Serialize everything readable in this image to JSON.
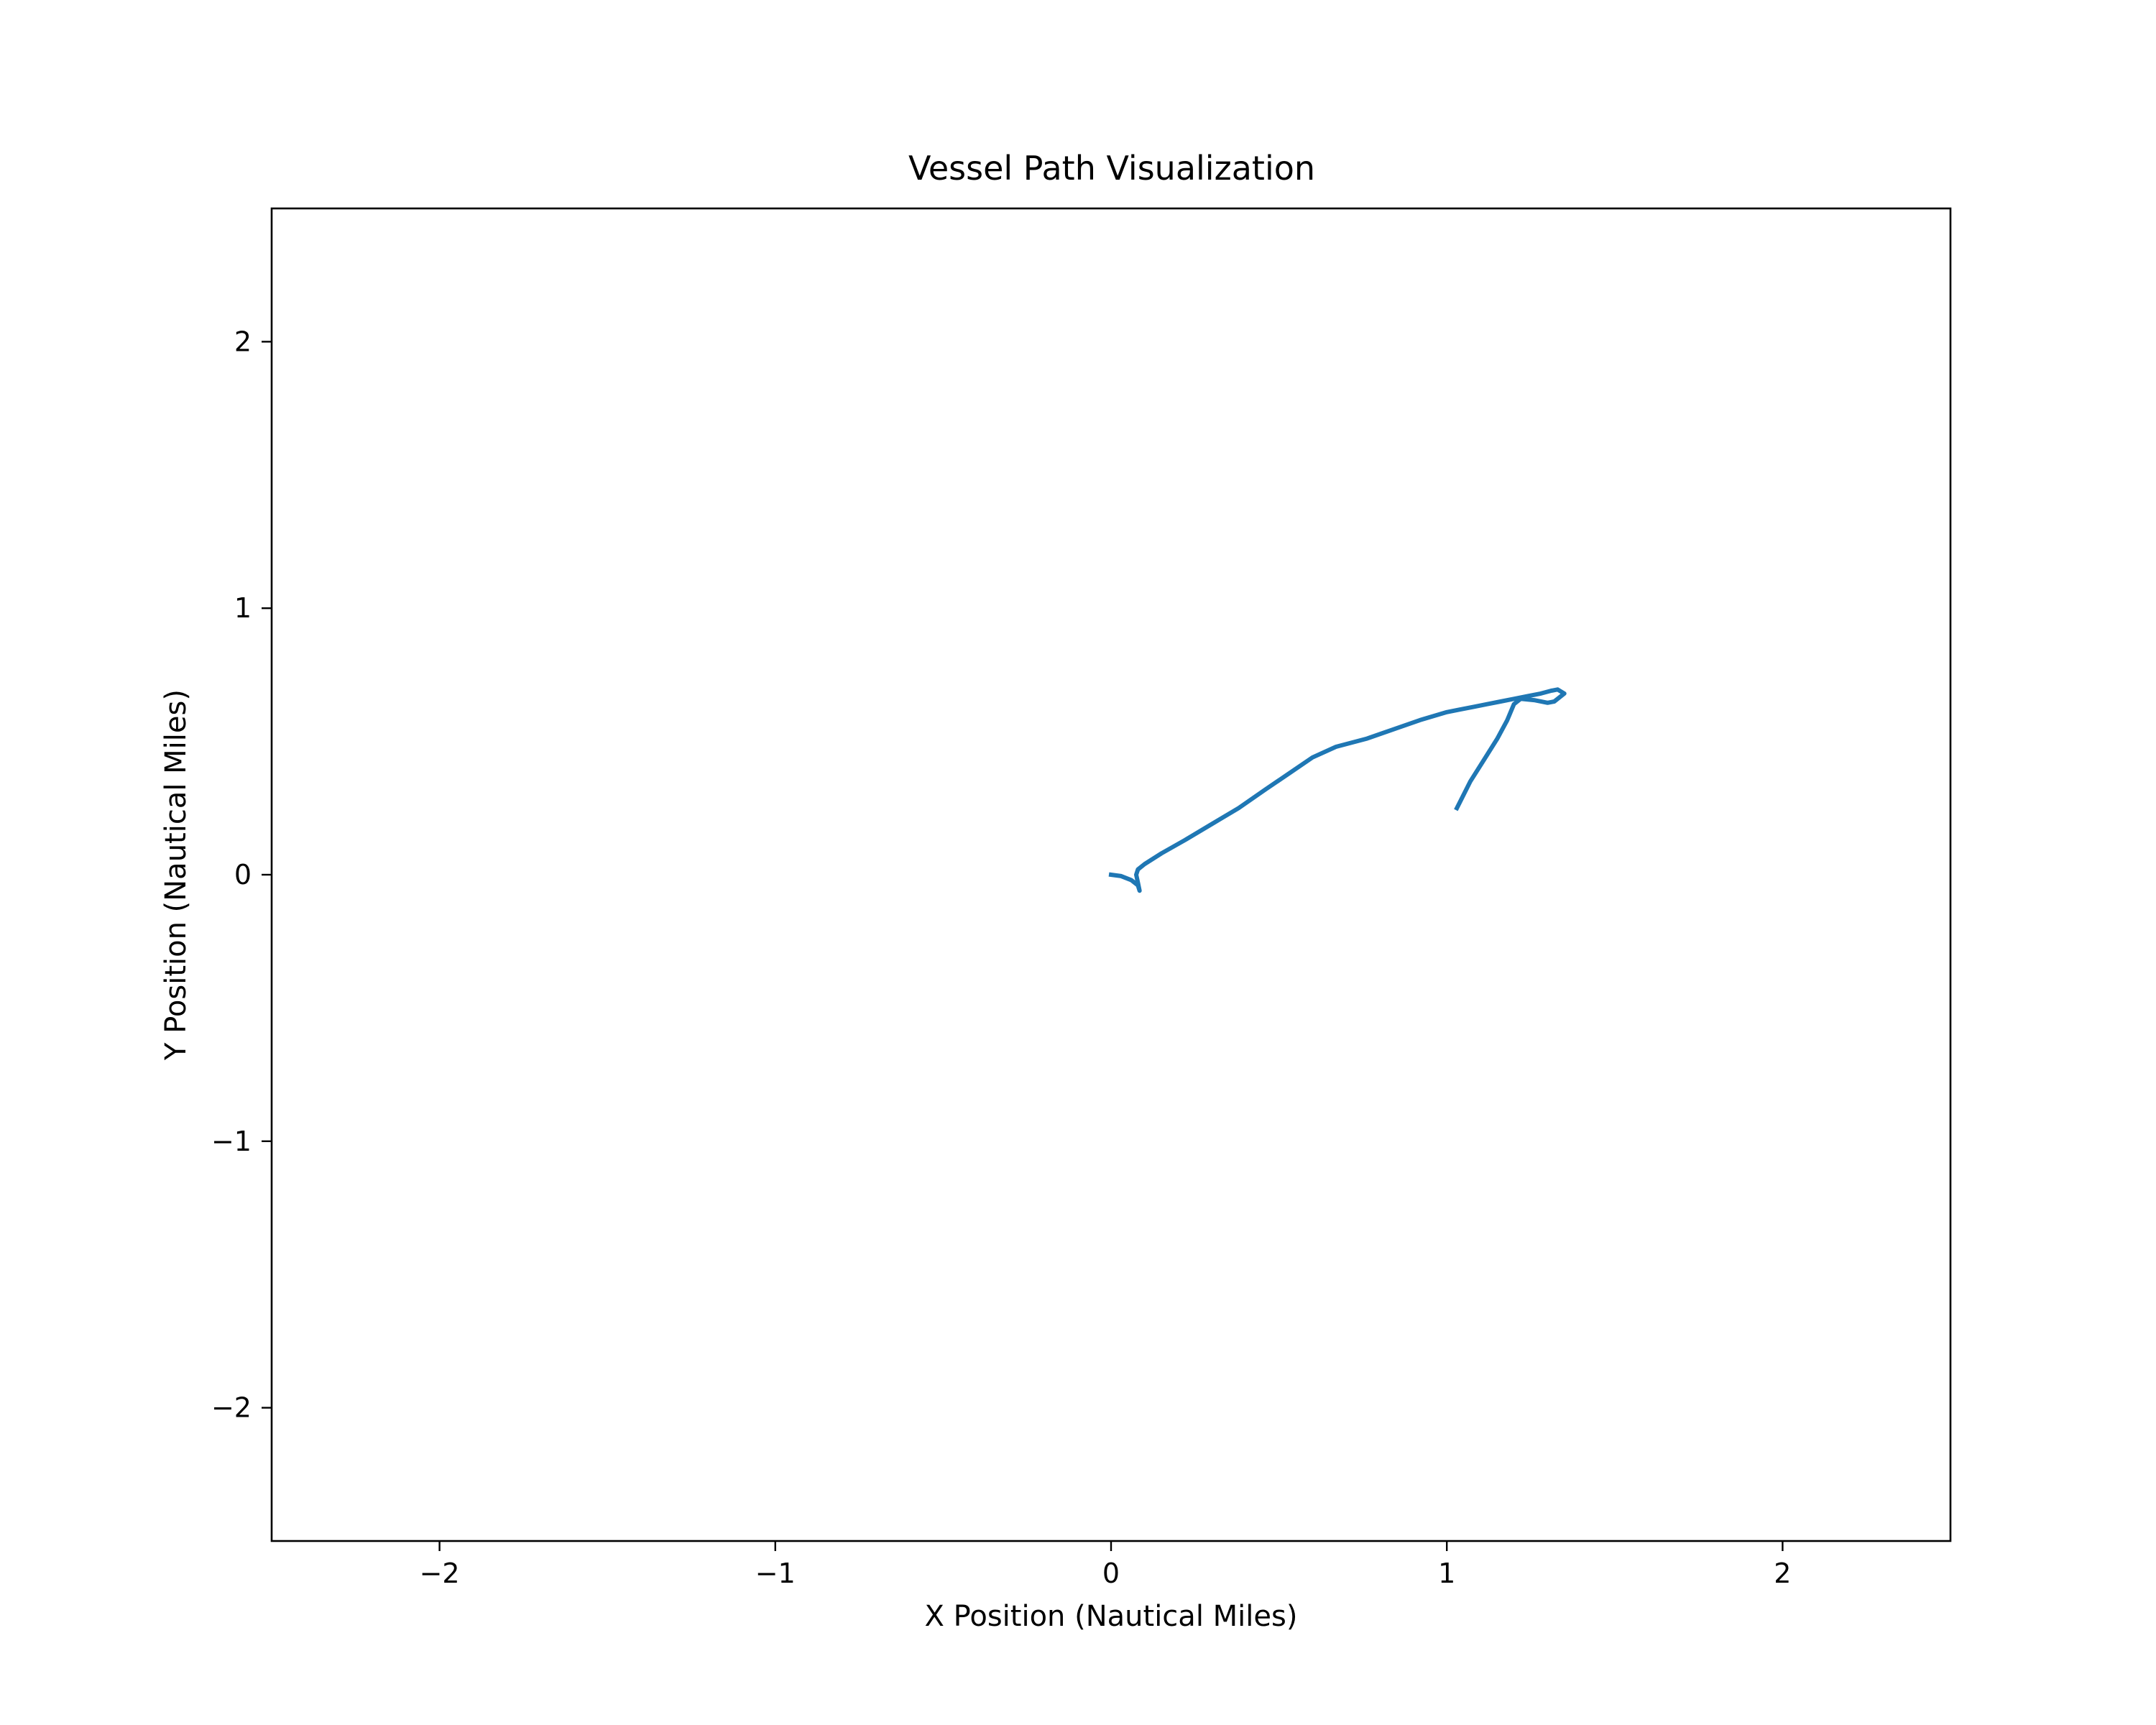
{
  "chart_data": {
    "type": "line",
    "title": "Vessel Path Visualization",
    "xlabel": "X Position (Nautical Miles)",
    "ylabel": "Y Position (Nautical Miles)",
    "xlim": [
      -2.5,
      2.5
    ],
    "ylim": [
      -2.5,
      2.5
    ],
    "x_ticks": [
      -2,
      -1,
      0,
      1,
      2
    ],
    "y_ticks": [
      -2,
      -1,
      0,
      1,
      2
    ],
    "x_tick_labels": [
      "−2",
      "−1",
      "0",
      "1",
      "2"
    ],
    "y_tick_labels": [
      "−2",
      "−1",
      "0",
      "1",
      "2"
    ],
    "grid": false,
    "legend": "none",
    "series": [
      {
        "color": "#1f77b4",
        "x": [
          0.0,
          0.03,
          0.06,
          0.08,
          0.085,
          0.08,
          0.075,
          0.08,
          0.1,
          0.15,
          0.22,
          0.3,
          0.38,
          0.46,
          0.53,
          0.6,
          0.67,
          0.76,
          0.84,
          0.92,
          1.0,
          1.04,
          1.08,
          1.12,
          1.16,
          1.2,
          1.24,
          1.28,
          1.31,
          1.33,
          1.35,
          1.34,
          1.32,
          1.3,
          1.26,
          1.22,
          1.2,
          1.18,
          1.15,
          1.11,
          1.07,
          1.03
        ],
        "y": [
          0.0,
          -0.005,
          -0.02,
          -0.04,
          -0.06,
          -0.03,
          0.0,
          0.02,
          0.04,
          0.08,
          0.13,
          0.19,
          0.25,
          0.32,
          0.38,
          0.44,
          0.48,
          0.51,
          0.545,
          0.58,
          0.61,
          0.62,
          0.63,
          0.64,
          0.65,
          0.66,
          0.67,
          0.68,
          0.69,
          0.695,
          0.68,
          0.67,
          0.65,
          0.645,
          0.655,
          0.66,
          0.64,
          0.58,
          0.51,
          0.43,
          0.35,
          0.25
        ]
      }
    ]
  }
}
